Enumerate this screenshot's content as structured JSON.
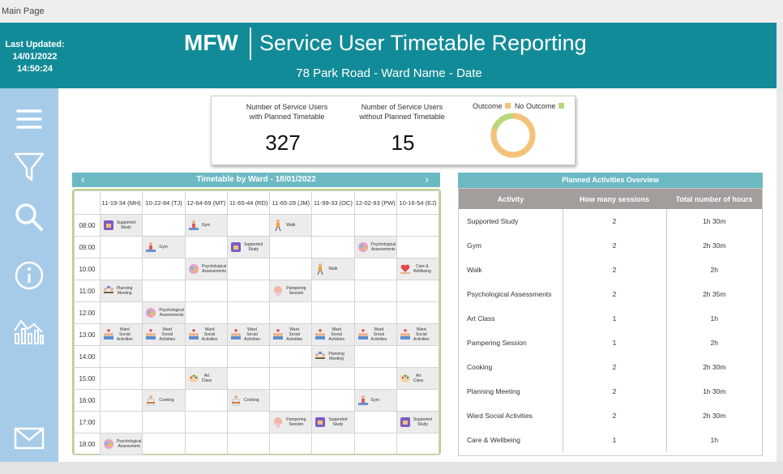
{
  "window": {
    "title": "Main Page"
  },
  "header": {
    "last_updated_label": "Last Updated:",
    "last_updated_date": "14/01/2022",
    "last_updated_time": "14:50:24",
    "brand": "MFW",
    "title": "Service User Timetable Reporting",
    "subtitle": "78 Park Road  - Ward Name - Date"
  },
  "sidebar": [
    {
      "name": "menu-icon"
    },
    {
      "name": "filter-icon"
    },
    {
      "name": "search-icon"
    },
    {
      "name": "info-icon"
    },
    {
      "name": "analytics-icon"
    },
    {
      "name": "mail-icon"
    }
  ],
  "kpi": {
    "with_plan_label_1": "Number of Service Users",
    "with_plan_label_2": "with Planned Timetable",
    "with_plan_value": "327",
    "without_plan_label_1": "Number of Service Users",
    "without_plan_label_2": "without Planned Timetable",
    "without_plan_value": "15",
    "legend_outcome": "Outcome",
    "legend_no_outcome": "No Outcome",
    "outcome_color": "#f5c27a",
    "no_outcome_color": "#b9d77a",
    "outcome_fraction": 0.8
  },
  "timetable": {
    "title": "Timetable by Ward - 18/01/2022",
    "prev_symbol": "‹",
    "next_symbol": "›",
    "columns": [
      "11-19-34 (MH)",
      "10-22-84 (TJ)",
      "12-64-69 (MT)",
      "11-65-44 (RD)",
      "11-65-28 (JM)",
      "11-99-33 (OC)",
      "12-02-93 (PW)",
      "10-16-54 (EJ)"
    ],
    "rows": [
      {
        "time": "08:00",
        "cells": [
          [
            "Supported",
            "Study"
          ],
          null,
          [
            "Gym"
          ],
          null,
          [
            "Walk"
          ],
          null,
          null,
          null
        ]
      },
      {
        "time": "09:00",
        "cells": [
          null,
          [
            "Gym"
          ],
          null,
          [
            "Supported",
            "Study"
          ],
          null,
          null,
          [
            "Psychological",
            "Assessments"
          ],
          null
        ]
      },
      {
        "time": "10:00",
        "cells": [
          null,
          null,
          [
            "Psychological",
            "Assessments"
          ],
          null,
          null,
          [
            "Walk"
          ],
          null,
          [
            "Care &",
            "Wellbeing"
          ]
        ]
      },
      {
        "time": "11:00",
        "cells": [
          [
            "Planning",
            "Meeting"
          ],
          null,
          null,
          null,
          [
            "Pampering",
            "Session"
          ],
          null,
          null,
          null
        ]
      },
      {
        "time": "12:00",
        "cells": [
          null,
          [
            "Psychological",
            "Assessments"
          ],
          null,
          null,
          null,
          null,
          null,
          null
        ]
      },
      {
        "time": "13:00",
        "cells": [
          [
            "Ward",
            "Social",
            "Activities"
          ],
          [
            "Ward",
            "Social",
            "Activities"
          ],
          [
            "Ward",
            "Social",
            "Activities"
          ],
          [
            "Ward",
            "Social",
            "Activities"
          ],
          [
            "Ward",
            "Social",
            "Activities"
          ],
          [
            "Ward",
            "Social",
            "Activities"
          ],
          [
            "Ward",
            "Social",
            "Activities"
          ],
          [
            "Ward",
            "Social",
            "Activities"
          ]
        ]
      },
      {
        "time": "14:00",
        "cells": [
          null,
          null,
          null,
          null,
          null,
          [
            "Planning",
            "Meeting"
          ],
          null,
          null
        ]
      },
      {
        "time": "15:00",
        "cells": [
          null,
          null,
          [
            "Art",
            "Class"
          ],
          null,
          null,
          null,
          null,
          [
            "Art",
            "Class"
          ]
        ]
      },
      {
        "time": "16:00",
        "cells": [
          null,
          [
            "Cooking"
          ],
          null,
          [
            "Cooking"
          ],
          null,
          null,
          [
            "Gym"
          ],
          null
        ]
      },
      {
        "time": "17:00",
        "cells": [
          null,
          null,
          null,
          null,
          [
            "Pampering",
            "Session"
          ],
          [
            "Supported",
            "Study"
          ],
          null,
          [
            "Supported",
            "Study"
          ]
        ]
      },
      {
        "time": "18:00",
        "cells": [
          [
            "Psychological",
            "Assessment"
          ],
          null,
          null,
          null,
          null,
          null,
          null,
          null
        ]
      }
    ]
  },
  "overview": {
    "title": "Planned Activities Overview",
    "headers": [
      "Activity",
      "How many sessions",
      "Total number of hours"
    ],
    "rows": [
      [
        "Supported Study",
        "2",
        "1h 30m"
      ],
      [
        "Gym",
        "2",
        "2h 30m"
      ],
      [
        "Walk",
        "2",
        "2h"
      ],
      [
        "Psychological Assessments",
        "2",
        "2h 35m"
      ],
      [
        "Art Class",
        "1",
        "1h"
      ],
      [
        "Pampering Session",
        "1",
        "2h"
      ],
      [
        "Cooking",
        "2",
        "2h 30m"
      ],
      [
        "Planning Meeting",
        "2",
        "1h 30m"
      ],
      [
        "Ward Social Activities",
        "2",
        "2h 30m"
      ],
      [
        "Care & Wellbeing",
        "1",
        "1h"
      ]
    ]
  }
}
